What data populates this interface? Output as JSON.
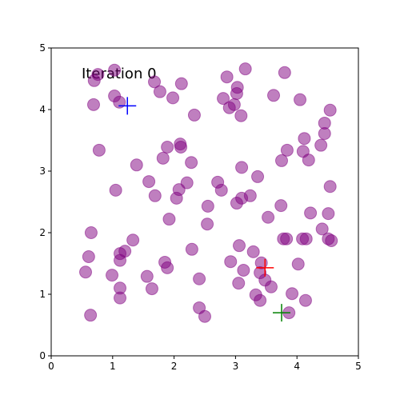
{
  "chart_data": {
    "type": "scatter",
    "annotation": "Iteration 0",
    "color": "#800080",
    "alpha": 0.5,
    "x": [
      1.03,
      0.76,
      0.7,
      1.68,
      2.12,
      3.16,
      3.8,
      2.86,
      3.03,
      3.02,
      1.77,
      1.98,
      1.03,
      1.11,
      0.69,
      2.8,
      2.98,
      2.9,
      3.62,
      4.05,
      4.54,
      3.09,
      2.33,
      4.45,
      4.45,
      4.12,
      4.39,
      0.78,
      2.1,
      1.89,
      2.11,
      3.84,
      4.1,
      1.82,
      3.75,
      4.19,
      2.28,
      1.39,
      3.1,
      3.36,
      2.71,
      1.59,
      2.21,
      4.54,
      1.05,
      2.08,
      2.77,
      1.69,
      3.24,
      3.1,
      2.04,
      3.02,
      2.55,
      3.74,
      4.22,
      4.51,
      3.53,
      1.92,
      2.54,
      4.41,
      0.65,
      3.78,
      3.83,
      4.09,
      4.15,
      4.51,
      4.56,
      1.33,
      3.06,
      2.29,
      3.29,
      1.2,
      1.12,
      0.61,
      1.12,
      1.85,
      2.92,
      4.02,
      3.42,
      1.89,
      3.13,
      0.56,
      3.4,
      0.99,
      1.56,
      3.48,
      2.41,
      3.05,
      3.58,
      1.12,
      1.64,
      3.92,
      3.33,
      1.12,
      3.4,
      4.14,
      2.41,
      0.64,
      2.5,
      3.87
    ],
    "y": [
      4.64,
      4.57,
      4.47,
      4.45,
      4.42,
      4.66,
      4.6,
      4.53,
      4.36,
      4.26,
      4.29,
      4.19,
      4.22,
      4.12,
      4.08,
      4.18,
      4.08,
      4.03,
      4.23,
      4.16,
      3.99,
      3.9,
      3.91,
      3.78,
      3.61,
      3.53,
      3.42,
      3.34,
      3.44,
      3.39,
      3.39,
      3.34,
      3.32,
      3.21,
      3.17,
      3.18,
      3.14,
      3.1,
      3.06,
      2.91,
      2.82,
      2.83,
      2.81,
      2.75,
      2.69,
      2.7,
      2.69,
      2.6,
      2.6,
      2.56,
      2.56,
      2.48,
      2.43,
      2.44,
      2.32,
      2.31,
      2.25,
      2.22,
      2.14,
      2.06,
      2.0,
      1.9,
      1.9,
      1.9,
      1.9,
      1.9,
      1.87,
      1.88,
      1.79,
      1.73,
      1.69,
      1.7,
      1.66,
      1.61,
      1.55,
      1.52,
      1.53,
      1.49,
      1.51,
      1.43,
      1.39,
      1.36,
      1.35,
      1.31,
      1.29,
      1.23,
      1.25,
      1.18,
      1.12,
      1.1,
      1.09,
      1.01,
      0.99,
      0.94,
      0.9,
      0.9,
      0.78,
      0.66,
      0.64,
      0.7
    ],
    "centroids": [
      {
        "x": 1.24,
        "y": 4.06,
        "color": "#0000ff"
      },
      {
        "x": 3.48,
        "y": 1.43,
        "color": "#ff0000"
      },
      {
        "x": 3.75,
        "y": 0.7,
        "color": "#008000"
      }
    ],
    "xlim": [
      0,
      5
    ],
    "ylim": [
      0,
      5
    ],
    "xticks": [
      0,
      1,
      2,
      3,
      4,
      5
    ],
    "yticks": [
      0,
      1,
      2,
      3,
      4,
      5
    ]
  }
}
